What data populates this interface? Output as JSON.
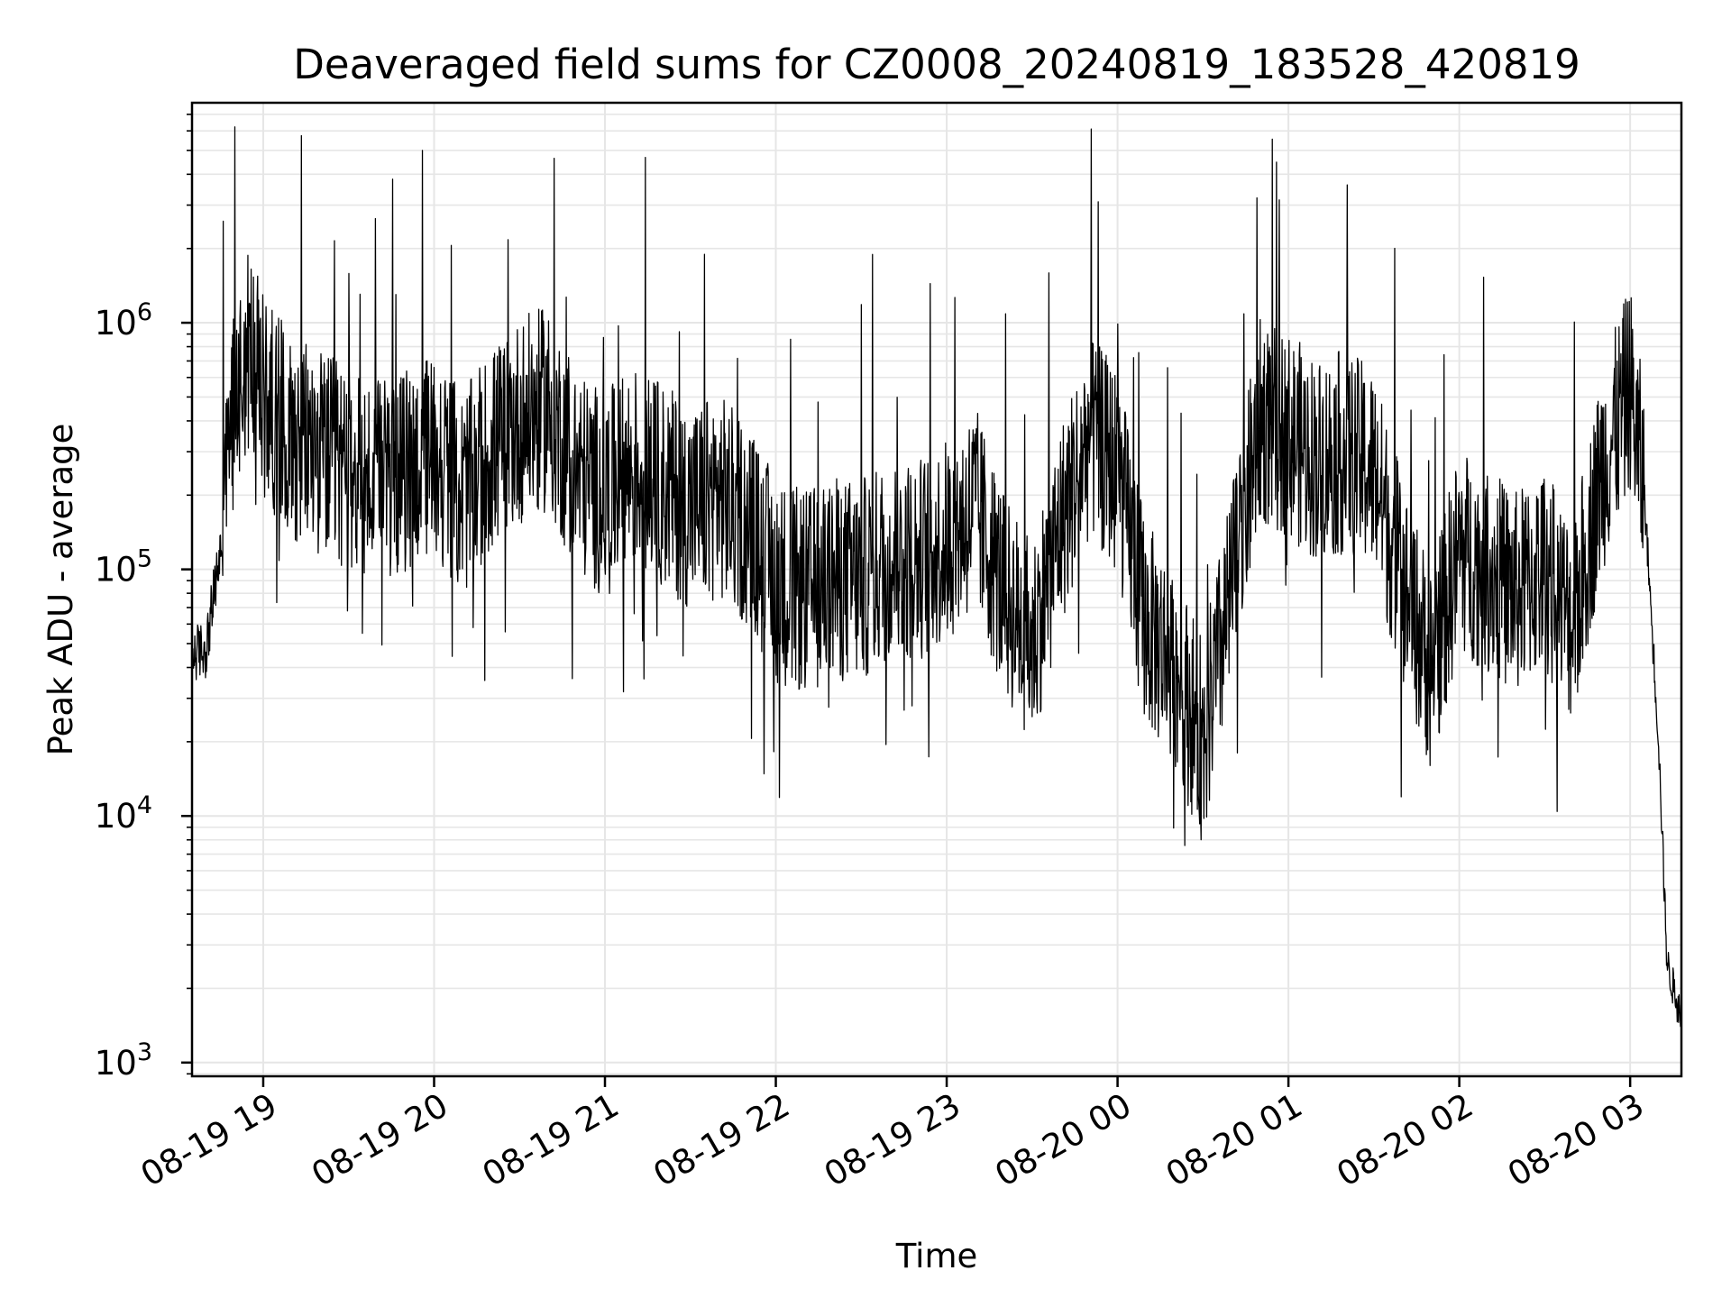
{
  "chart_data": {
    "type": "line",
    "title": "Deaveraged field sums for CZ0008_20240819_183528_420819",
    "xlabel": "Time",
    "ylabel": "Peak ADU - average",
    "yscale": "log",
    "grid": true,
    "line_color": "#000000",
    "grid_color": "#e6e6e6",
    "x_ticks": [
      "08-19 19",
      "08-19 20",
      "08-19 21",
      "08-19 22",
      "08-19 23",
      "08-20 00",
      "08-20 01",
      "08-20 02",
      "08-20 03"
    ],
    "y_ticks": [
      {
        "value": 1000,
        "label": "10^3"
      },
      {
        "value": 10000,
        "label": "10^4"
      },
      {
        "value": 100000,
        "label": "10^5"
      },
      {
        "value": 1000000,
        "label": "10^6"
      }
    ],
    "xlim": [
      "2024-08-19 18:35",
      "2024-08-20 03:18"
    ],
    "ylim": [
      880,
      7800000
    ],
    "series": [
      {
        "values": [
          [
            "2024-08-19 18:35",
            45000
          ],
          [
            "2024-08-19 18:40",
            48000
          ],
          [
            "2024-08-19 18:45",
            120000
          ],
          [
            "2024-08-19 18:50",
            550000
          ],
          [
            "2024-08-19 18:55",
            800000
          ],
          [
            "2024-08-19 19:00",
            500000
          ],
          [
            "2024-08-19 19:10",
            350000
          ],
          [
            "2024-08-19 19:20",
            300000
          ],
          [
            "2024-08-19 19:30",
            250000
          ],
          [
            "2024-08-19 19:40",
            220000
          ],
          [
            "2024-08-19 19:50",
            250000
          ],
          [
            "2024-08-19 20:00",
            300000
          ],
          [
            "2024-08-19 20:10",
            200000
          ],
          [
            "2024-08-19 20:20",
            300000
          ],
          [
            "2024-08-19 20:30",
            400000
          ],
          [
            "2024-08-19 20:40",
            450000
          ],
          [
            "2024-08-19 20:50",
            250000
          ],
          [
            "2024-08-19 21:00",
            200000
          ],
          [
            "2024-08-19 21:10",
            260000
          ],
          [
            "2024-08-19 21:20",
            220000
          ],
          [
            "2024-08-19 21:30",
            180000
          ],
          [
            "2024-08-19 21:40",
            200000
          ],
          [
            "2024-08-19 21:50",
            150000
          ],
          [
            "2024-08-19 22:00",
            90000
          ],
          [
            "2024-08-19 22:10",
            80000
          ],
          [
            "2024-08-19 22:20",
            90000
          ],
          [
            "2024-08-19 22:30",
            90000
          ],
          [
            "2024-08-19 22:40",
            110000
          ],
          [
            "2024-08-19 22:50",
            110000
          ],
          [
            "2024-08-19 23:00",
            130000
          ],
          [
            "2024-08-19 23:10",
            180000
          ],
          [
            "2024-08-19 23:20",
            80000
          ],
          [
            "2024-08-19 23:30",
            50000
          ],
          [
            "2024-08-19 23:40",
            150000
          ],
          [
            "2024-08-19 23:50",
            350000
          ],
          [
            "2024-08-20 00:00",
            250000
          ],
          [
            "2024-08-20 00:10",
            60000
          ],
          [
            "2024-08-20 00:20",
            40000
          ],
          [
            "2024-08-20 00:30",
            20000
          ],
          [
            "2024-08-20 00:40",
            80000
          ],
          [
            "2024-08-20 00:50",
            400000
          ],
          [
            "2024-08-20 01:00",
            350000
          ],
          [
            "2024-08-20 01:10",
            280000
          ],
          [
            "2024-08-20 01:20",
            300000
          ],
          [
            "2024-08-20 01:30",
            250000
          ],
          [
            "2024-08-20 01:40",
            90000
          ],
          [
            "2024-08-20 01:50",
            40000
          ],
          [
            "2024-08-20 02:00",
            120000
          ],
          [
            "2024-08-20 02:10",
            100000
          ],
          [
            "2024-08-20 02:20",
            80000
          ],
          [
            "2024-08-20 02:30",
            100000
          ],
          [
            "2024-08-20 02:40",
            60000
          ],
          [
            "2024-08-20 02:50",
            250000
          ],
          [
            "2024-08-20 03:00",
            550000
          ],
          [
            "2024-08-20 03:05",
            200000
          ],
          [
            "2024-08-20 03:10",
            20000
          ],
          [
            "2024-08-20 03:13",
            2500
          ],
          [
            "2024-08-20 03:18",
            1500
          ]
        ]
      }
    ]
  }
}
